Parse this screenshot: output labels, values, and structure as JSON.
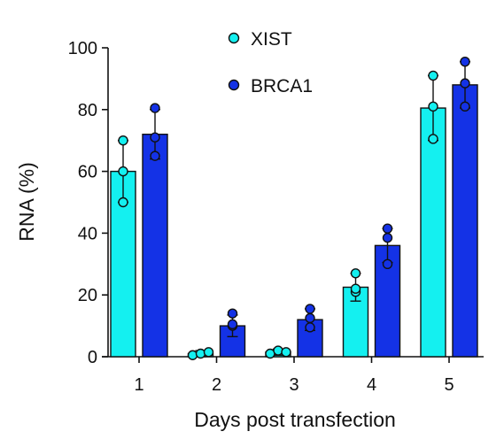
{
  "chart_data": {
    "type": "bar",
    "xlabel": "Days post transfection",
    "ylabel": "RNA (%)",
    "ylim": [
      0,
      100
    ],
    "yticks": [
      0,
      20,
      40,
      60,
      80,
      100
    ],
    "categories": [
      "1",
      "2",
      "3",
      "4",
      "5"
    ],
    "legend_position": "top",
    "series": [
      {
        "name": "XIST",
        "color": "#14f0f0",
        "values": [
          60,
          1,
          1.5,
          22.5,
          80.5
        ],
        "errors": [
          10,
          1,
          1,
          4.5,
          10.5
        ],
        "points": [
          [
            70,
            60,
            50
          ],
          [
            0.5,
            1,
            1.5
          ],
          [
            1,
            2,
            1.5
          ],
          [
            27,
            21,
            22
          ],
          [
            91,
            81,
            70.5
          ]
        ]
      },
      {
        "name": "BRCA1",
        "color": "#1432e6",
        "values": [
          72,
          10,
          12,
          36,
          88
        ],
        "errors": [
          8,
          3.5,
          3.5,
          5.5,
          7.5
        ],
        "points": [
          [
            80.5,
            71,
            65
          ],
          [
            14,
            10,
            10.5
          ],
          [
            15.5,
            12.5,
            9.5
          ],
          [
            41.5,
            38.5,
            30
          ],
          [
            95.5,
            88.5,
            81
          ]
        ]
      }
    ]
  }
}
